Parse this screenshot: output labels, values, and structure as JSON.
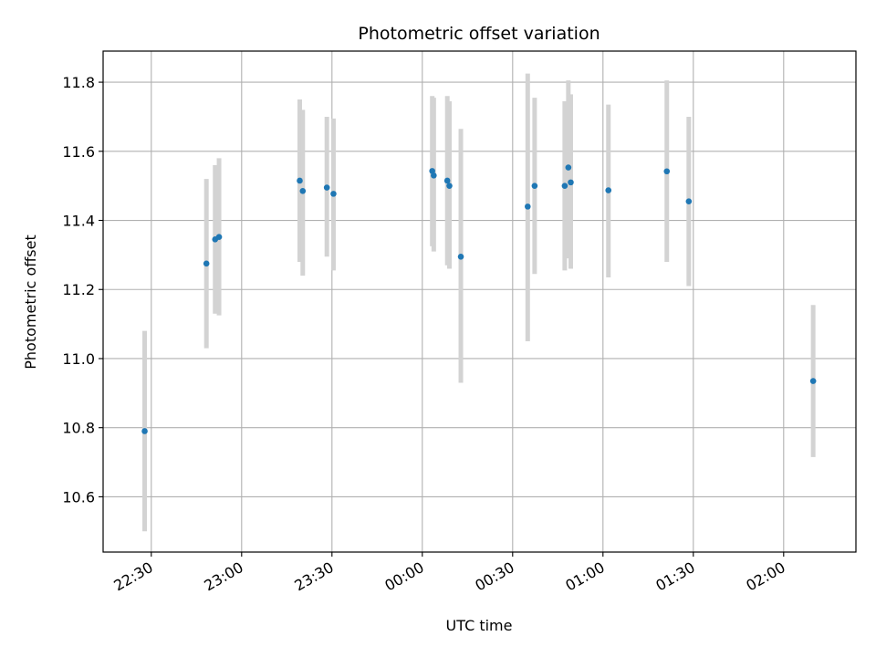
{
  "chart_data": {
    "type": "scatter",
    "title": "Photometric offset variation",
    "xlabel": "UTC time",
    "ylabel": "Photometric offset",
    "grid": true,
    "legend": "none",
    "colors": {
      "marker": "#1f77b4",
      "errorbar": "#d3d3d3",
      "grid": "#b0b0b0",
      "axes": "#000000"
    },
    "xlim": [
      "22:14",
      "02:24"
    ],
    "ylim": [
      10.44,
      11.89
    ],
    "xticks": [
      "22:30",
      "23:00",
      "23:30",
      "00:00",
      "00:30",
      "01:00",
      "01:30",
      "02:00"
    ],
    "yticks": [
      10.6,
      10.8,
      11.0,
      11.2,
      11.4,
      11.6,
      11.8
    ],
    "ytick_labels": [
      "10.6",
      "10.8",
      "11.0",
      "11.2",
      "11.4",
      "11.6",
      "11.8"
    ],
    "points": [
      {
        "x": "22:27.8",
        "y": 10.79,
        "lo": 10.5,
        "hi": 11.08
      },
      {
        "x": "22:48.3",
        "y": 11.275,
        "lo": 11.03,
        "hi": 11.52
      },
      {
        "x": "22:51.2",
        "y": 11.345,
        "lo": 11.13,
        "hi": 11.56
      },
      {
        "x": "22:52.5",
        "y": 11.352,
        "lo": 11.125,
        "hi": 11.58
      },
      {
        "x": "23:19.3",
        "y": 11.515,
        "lo": 11.28,
        "hi": 11.75
      },
      {
        "x": "23:20.3",
        "y": 11.485,
        "lo": 11.24,
        "hi": 11.72
      },
      {
        "x": "23:28.3",
        "y": 11.495,
        "lo": 11.295,
        "hi": 11.7
      },
      {
        "x": "23:30.5",
        "y": 11.477,
        "lo": 11.255,
        "hi": 11.695
      },
      {
        "x": "00:03.3",
        "y": 11.543,
        "lo": 11.325,
        "hi": 11.76
      },
      {
        "x": "00:03.8",
        "y": 11.53,
        "lo": 11.31,
        "hi": 11.755
      },
      {
        "x": "00:08.3",
        "y": 11.515,
        "lo": 11.27,
        "hi": 11.76
      },
      {
        "x": "00:09.0",
        "y": 11.5,
        "lo": 11.26,
        "hi": 11.745
      },
      {
        "x": "00:12.8",
        "y": 11.295,
        "lo": 10.93,
        "hi": 11.665
      },
      {
        "x": "00:35.0",
        "y": 11.44,
        "lo": 11.05,
        "hi": 11.825
      },
      {
        "x": "00:37.3",
        "y": 11.5,
        "lo": 11.245,
        "hi": 11.755
      },
      {
        "x": "00:47.3",
        "y": 11.5,
        "lo": 11.255,
        "hi": 11.745
      },
      {
        "x": "00:48.5",
        "y": 11.553,
        "lo": 11.29,
        "hi": 11.805
      },
      {
        "x": "00:49.3",
        "y": 11.51,
        "lo": 11.26,
        "hi": 11.765
      },
      {
        "x": "01:01.8",
        "y": 11.487,
        "lo": 11.235,
        "hi": 11.735
      },
      {
        "x": "01:21.2",
        "y": 11.542,
        "lo": 11.28,
        "hi": 11.805
      },
      {
        "x": "01:28.5",
        "y": 11.455,
        "lo": 11.21,
        "hi": 11.7
      },
      {
        "x": "02:09.8",
        "y": 10.935,
        "lo": 10.715,
        "hi": 11.155
      }
    ]
  }
}
